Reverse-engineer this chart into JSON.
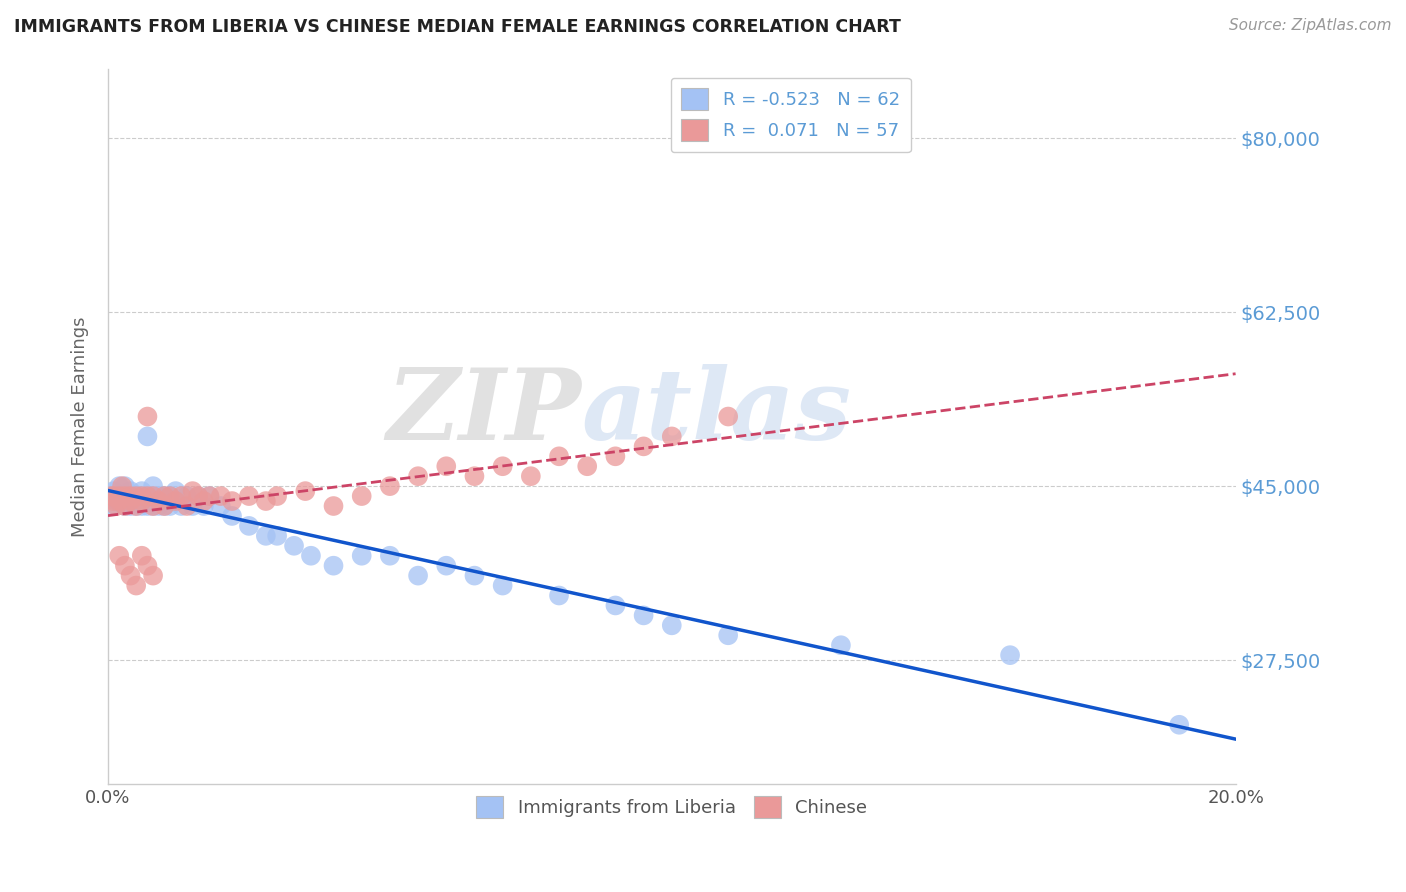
{
  "title": "IMMIGRANTS FROM LIBERIA VS CHINESE MEDIAN FEMALE EARNINGS CORRELATION CHART",
  "source": "Source: ZipAtlas.com",
  "ylabel_label": "Median Female Earnings",
  "ytick_labels": [
    "$27,500",
    "$45,000",
    "$62,500",
    "$80,000"
  ],
  "ytick_values": [
    27500,
    45000,
    62500,
    80000
  ],
  "xmin": 0.0,
  "xmax": 0.2,
  "ymin": 15000,
  "ymax": 87000,
  "legend_label1": "Immigrants from Liberia",
  "legend_label2": "Chinese",
  "color_liberia": "#a4c2f4",
  "color_chinese": "#ea9999",
  "line_color_liberia": "#1155cc",
  "line_color_chinese": "#cc4466",
  "watermark_zip": "ZIP",
  "watermark_atlas": "atlas",
  "r_liberia": -0.523,
  "n_liberia": 62,
  "r_chinese": 0.071,
  "n_chinese": 57,
  "liberia_x": [
    0.0005,
    0.001,
    0.001,
    0.0015,
    0.002,
    0.002,
    0.0025,
    0.003,
    0.003,
    0.003,
    0.004,
    0.004,
    0.004,
    0.005,
    0.005,
    0.005,
    0.005,
    0.006,
    0.006,
    0.006,
    0.007,
    0.007,
    0.007,
    0.008,
    0.008,
    0.008,
    0.009,
    0.009,
    0.01,
    0.01,
    0.011,
    0.011,
    0.012,
    0.012,
    0.013,
    0.014,
    0.015,
    0.016,
    0.017,
    0.018,
    0.02,
    0.022,
    0.025,
    0.028,
    0.03,
    0.033,
    0.036,
    0.04,
    0.045,
    0.05,
    0.055,
    0.06,
    0.065,
    0.07,
    0.08,
    0.09,
    0.095,
    0.1,
    0.11,
    0.13,
    0.16,
    0.19
  ],
  "liberia_y": [
    44000,
    44500,
    43000,
    43500,
    44000,
    45000,
    44000,
    43000,
    44000,
    45000,
    44000,
    43000,
    44500,
    43000,
    44000,
    43500,
    44000,
    43000,
    44000,
    44500,
    43000,
    44000,
    50000,
    43000,
    44000,
    45000,
    43000,
    44000,
    43000,
    44000,
    43000,
    44000,
    43500,
    44500,
    43000,
    44000,
    43000,
    44000,
    43000,
    44000,
    43000,
    42000,
    41000,
    40000,
    40000,
    39000,
    38000,
    37000,
    38000,
    38000,
    36000,
    37000,
    36000,
    35000,
    34000,
    33000,
    32000,
    31000,
    30000,
    29000,
    28000,
    21000
  ],
  "chinese_x": [
    0.0005,
    0.001,
    0.001,
    0.0015,
    0.002,
    0.002,
    0.0025,
    0.003,
    0.003,
    0.004,
    0.004,
    0.005,
    0.005,
    0.006,
    0.006,
    0.007,
    0.007,
    0.008,
    0.008,
    0.009,
    0.01,
    0.01,
    0.011,
    0.012,
    0.013,
    0.014,
    0.015,
    0.016,
    0.017,
    0.018,
    0.02,
    0.022,
    0.025,
    0.028,
    0.03,
    0.035,
    0.04,
    0.045,
    0.05,
    0.055,
    0.06,
    0.065,
    0.07,
    0.075,
    0.08,
    0.085,
    0.09,
    0.095,
    0.1,
    0.11,
    0.002,
    0.003,
    0.004,
    0.005,
    0.006,
    0.007,
    0.008
  ],
  "chinese_y": [
    44000,
    43500,
    44000,
    43000,
    44000,
    43500,
    45000,
    44000,
    43000,
    44000,
    43500,
    44000,
    43000,
    44000,
    43500,
    44000,
    52000,
    43000,
    44000,
    43500,
    44000,
    43000,
    44000,
    43500,
    44000,
    43000,
    44500,
    44000,
    43500,
    44000,
    44000,
    43500,
    44000,
    43500,
    44000,
    44500,
    43000,
    44000,
    45000,
    46000,
    47000,
    46000,
    47000,
    46000,
    48000,
    47000,
    48000,
    49000,
    50000,
    52000,
    38000,
    37000,
    36000,
    35000,
    38000,
    37000,
    36000
  ]
}
